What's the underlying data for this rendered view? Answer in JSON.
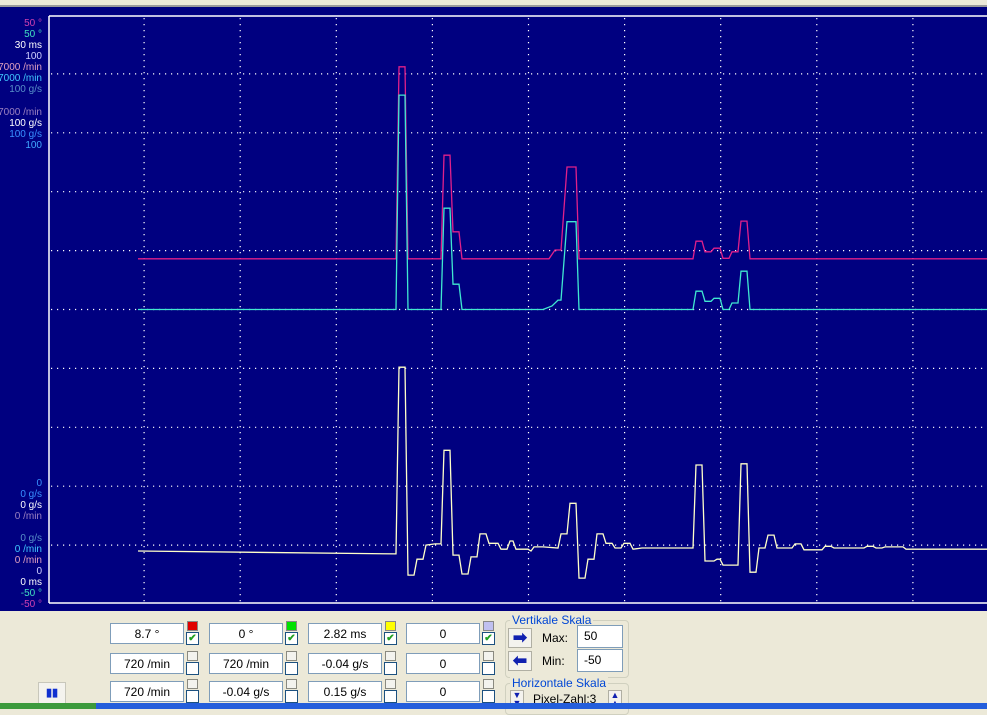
{
  "scope": {
    "background": "#000080",
    "samples_per_pixel_note": "Pixel-Zahl:3",
    "axis_labels_top": [
      {
        "text": "50 °",
        "color": "#d040b0"
      },
      {
        "text": "50 °",
        "color": "#40e0c0"
      },
      {
        "text": "30 ms",
        "color": "#ffffff"
      },
      {
        "text": "100",
        "color": "#d0d0ff"
      },
      {
        "text": "7000 /min",
        "color": "#e0a0c0"
      },
      {
        "text": "7000 /min",
        "color": "#40c8ff"
      },
      {
        "text": "100 g/s",
        "color": "#5890c8"
      }
    ],
    "axis_labels_upper2": [
      {
        "text": "7000 /min",
        "color": "#9a80c0"
      },
      {
        "text": "100 g/s",
        "color": "#ffffff"
      },
      {
        "text": "100 g/s",
        "color": "#3890ff"
      },
      {
        "text": "100",
        "color": "#40a8ff"
      }
    ],
    "axis_labels_lower1": [
      {
        "text": "0",
        "color": "#3890ff"
      },
      {
        "text": "0 g/s",
        "color": "#3890ff"
      },
      {
        "text": "0 g/s",
        "color": "#ffffff"
      },
      {
        "text": "0 /min",
        "color": "#9a80c0"
      }
    ],
    "axis_labels_lower2": [
      {
        "text": "0 g/s",
        "color": "#5890c8"
      },
      {
        "text": "0 /min",
        "color": "#40c8ff"
      },
      {
        "text": "0 /min",
        "color": "#e0a0c0"
      },
      {
        "text": "0",
        "color": "#d0d0ff"
      },
      {
        "text": "0 ms",
        "color": "#ffffff"
      },
      {
        "text": "-50 °",
        "color": "#40e0c0"
      },
      {
        "text": "-50 °",
        "color": "#d040b0"
      }
    ]
  },
  "chart_data": {
    "type": "line",
    "x_unit": "sample",
    "ylim": [
      -50,
      50
    ],
    "grid": true,
    "grid_divisions": {
      "x": 10,
      "y": 10
    },
    "series": [
      {
        "color": "#e0208a",
        "points": [
          [
            0,
            8.6
          ],
          [
            86,
            8.6
          ],
          [
            87,
            41.2
          ],
          [
            89,
            41.2
          ],
          [
            90,
            8.6
          ],
          [
            101,
            8.6
          ],
          [
            102,
            26.2
          ],
          [
            104,
            26.2
          ],
          [
            105,
            13.2
          ],
          [
            107,
            13.2
          ],
          [
            108,
            8.6
          ],
          [
            137,
            8.6
          ],
          [
            139,
            10.1
          ],
          [
            141,
            10.1
          ],
          [
            143,
            24.2
          ],
          [
            146,
            24.2
          ],
          [
            147,
            8.6
          ],
          [
            185,
            8.6
          ],
          [
            186,
            11.6
          ],
          [
            188,
            11.6
          ],
          [
            189,
            9.8
          ],
          [
            191,
            9.8
          ],
          [
            192,
            10.4
          ],
          [
            194,
            10.4
          ],
          [
            195,
            8.7
          ],
          [
            197,
            8.7
          ],
          [
            198,
            9.8
          ],
          [
            200,
            9.8
          ],
          [
            201,
            15.0
          ],
          [
            203,
            15.0
          ],
          [
            204,
            8.6
          ],
          [
            283,
            8.6
          ]
        ]
      },
      {
        "color": "#40e8d0",
        "points": [
          [
            0,
            0
          ],
          [
            86,
            0
          ],
          [
            87,
            36.4
          ],
          [
            89,
            36.4
          ],
          [
            90,
            0
          ],
          [
            101,
            0
          ],
          [
            102,
            17.2
          ],
          [
            104,
            17.2
          ],
          [
            105,
            4.3
          ],
          [
            107,
            4.3
          ],
          [
            108,
            0
          ],
          [
            135,
            0
          ],
          [
            138,
            0.6
          ],
          [
            140,
            1.6
          ],
          [
            141,
            1.6
          ],
          [
            143,
            14.9
          ],
          [
            146,
            14.9
          ],
          [
            147,
            0
          ],
          [
            185,
            0
          ],
          [
            186,
            3.1
          ],
          [
            188,
            3.1
          ],
          [
            189,
            1.4
          ],
          [
            191,
            1.4
          ],
          [
            192,
            1.9
          ],
          [
            194,
            1.9
          ],
          [
            195,
            0
          ],
          [
            197,
            0
          ],
          [
            198,
            1.1
          ],
          [
            200,
            1.1
          ],
          [
            201,
            6.5
          ],
          [
            203,
            6.5
          ],
          [
            204,
            0
          ],
          [
            283,
            0
          ]
        ]
      },
      {
        "color": "#ffffc8",
        "points": [
          [
            0,
            -41.0
          ],
          [
            86,
            -41.5
          ],
          [
            87,
            -9.8
          ],
          [
            89,
            -9.8
          ],
          [
            90,
            -45.1
          ],
          [
            92,
            -45.1
          ],
          [
            93,
            -42.4
          ],
          [
            95,
            -42.4
          ],
          [
            96,
            -40.0
          ],
          [
            99,
            -39.8
          ],
          [
            101,
            -39.8
          ],
          [
            102,
            -23.9
          ],
          [
            104,
            -23.9
          ],
          [
            105,
            -41.7
          ],
          [
            107,
            -41.7
          ],
          [
            108,
            -44.9
          ],
          [
            110,
            -44.9
          ],
          [
            111,
            -42.0
          ],
          [
            113,
            -42.0
          ],
          [
            114,
            -38.1
          ],
          [
            116,
            -38.1
          ],
          [
            117,
            -39.7
          ],
          [
            120,
            -39.7
          ],
          [
            121,
            -40.7
          ],
          [
            123,
            -40.7
          ],
          [
            124,
            -39.3
          ],
          [
            125,
            -39.3
          ],
          [
            126,
            -40.7
          ],
          [
            130,
            -40.7
          ],
          [
            131,
            -41.0
          ],
          [
            132,
            -40.3
          ],
          [
            135,
            -40.3
          ],
          [
            140,
            -40.5
          ],
          [
            141,
            -38.1
          ],
          [
            143,
            -38.1
          ],
          [
            144,
            -32.9
          ],
          [
            146,
            -32.9
          ],
          [
            147,
            -45.6
          ],
          [
            149,
            -45.6
          ],
          [
            150,
            -42.4
          ],
          [
            152,
            -42.4
          ],
          [
            153,
            -38.1
          ],
          [
            155,
            -38.1
          ],
          [
            156,
            -39.7
          ],
          [
            158,
            -39.7
          ],
          [
            159,
            -40.5
          ],
          [
            161,
            -40.5
          ],
          [
            162,
            -39.7
          ],
          [
            164,
            -39.7
          ],
          [
            165,
            -40.7
          ],
          [
            168,
            -40.5
          ],
          [
            185,
            -40.5
          ],
          [
            186,
            -26.4
          ],
          [
            188,
            -26.4
          ],
          [
            189,
            -42.7
          ],
          [
            192,
            -42.7
          ],
          [
            193,
            -42.4
          ],
          [
            194,
            -42.4
          ],
          [
            195,
            -43.4
          ],
          [
            200,
            -43.4
          ],
          [
            201,
            -26.2
          ],
          [
            203,
            -26.2
          ],
          [
            204,
            -44.6
          ],
          [
            206,
            -44.6
          ],
          [
            207,
            -40.5
          ],
          [
            209,
            -40.5
          ],
          [
            210,
            -38.3
          ],
          [
            212,
            -38.3
          ],
          [
            213,
            -40.5
          ],
          [
            218,
            -40.5
          ],
          [
            219,
            -39.8
          ],
          [
            221,
            -39.8
          ],
          [
            222,
            -40.8
          ],
          [
            228,
            -40.8
          ],
          [
            229,
            -40.2
          ],
          [
            231,
            -40.2
          ],
          [
            232,
            -40.5
          ],
          [
            242,
            -40.5
          ],
          [
            243,
            -40.2
          ],
          [
            245,
            -40.2
          ],
          [
            246,
            -40.5
          ],
          [
            248,
            -40.5
          ],
          [
            249,
            -40.3
          ],
          [
            255,
            -40.3
          ],
          [
            256,
            -40.7
          ],
          [
            283,
            -40.7
          ]
        ]
      }
    ]
  },
  "readouts": {
    "rows": [
      [
        {
          "value": "8.7 °",
          "checked": true
        },
        {
          "value": "0 °",
          "checked": true
        },
        {
          "value": "2.82 ms",
          "checked": true
        },
        {
          "value": "0",
          "checked": true
        }
      ],
      [
        {
          "value": "720 /min",
          "checked": false
        },
        {
          "value": "720 /min",
          "checked": false
        },
        {
          "value": "-0.04 g/s",
          "checked": false
        },
        {
          "value": "0",
          "checked": false
        }
      ],
      [
        {
          "value": "720 /min",
          "checked": false
        },
        {
          "value": "-0.04 g/s",
          "checked": false
        },
        {
          "value": "0.15 g/s",
          "checked": false
        },
        {
          "value": "0",
          "checked": false
        }
      ]
    ],
    "channel_colors": [
      "#e00000",
      "#00e000",
      "#ffff00",
      "#c0c0f0"
    ]
  },
  "vertical_scale": {
    "title": "Vertikale Skala",
    "max_label": "Max:",
    "max_value": "50",
    "min_label": "Min:",
    "min_value": "-50"
  },
  "horizontal_scale": {
    "title": "Horizontale Skala",
    "pixel_label": "Pixel-Zahl:3"
  },
  "pause_button": {
    "label": "▮▮"
  }
}
